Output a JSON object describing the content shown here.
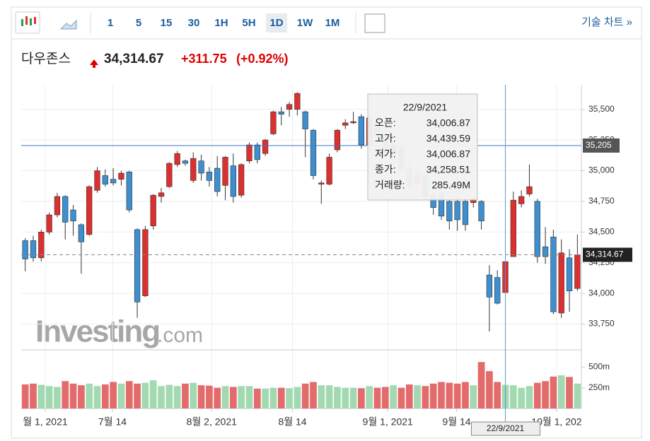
{
  "toolbar": {
    "intervals": [
      "1",
      "5",
      "15",
      "30",
      "1H",
      "5H",
      "1D",
      "1W",
      "1M"
    ],
    "selected": "1D",
    "link": "기술 차트 »"
  },
  "header": {
    "name": "다우존스",
    "price": "34,314.67",
    "change": "+311.75",
    "change_pct": "(+0.92%)"
  },
  "watermark": {
    "brand": "Investing",
    "suffix": ".com"
  },
  "chart_data": {
    "type": "candlestick",
    "up_color": "#dc2f2f",
    "down_color": "#3e8fd0",
    "volume_up_color": "#a3d9b1",
    "volume_down_color": "#e36b6b",
    "open": [
      34430,
      34430,
      34290,
      34500,
      34640,
      34790,
      34680,
      34560,
      34480,
      34840,
      34960,
      34930,
      34930,
      34990,
      34520,
      33980,
      34550,
      34790,
      34870,
      35050,
      35080,
      34920,
      35080,
      34990,
      35020,
      34880,
      35040,
      34800,
      35080,
      35210,
      35140,
      35300,
      35480,
      35500,
      35500,
      35480,
      35330,
      34890,
      34890,
      35170,
      35370,
      35390,
      35440,
      35210,
      35400,
      35290,
      35160,
      35190,
      35020,
      34900,
      34960,
      34800,
      34810,
      34750,
      34750,
      34750,
      34740,
      34750,
      34150,
      34130,
      34006.87,
      34300,
      34730,
      34810,
      34750,
      34380,
      34460,
      33840,
      34290,
      34040
    ],
    "high": [
      34450,
      34470,
      34520,
      34660,
      34820,
      34800,
      34720,
      34570,
      34880,
      35030,
      35010,
      35020,
      35000,
      35000,
      34530,
      34550,
      34810,
      34860,
      35070,
      35160,
      35090,
      35150,
      35130,
      35030,
      35120,
      35120,
      35140,
      35060,
      35230,
      35230,
      35260,
      35490,
      35520,
      35560,
      35640,
      35490,
      35340,
      34920,
      35140,
      35340,
      35420,
      35480,
      35460,
      35470,
      35420,
      35310,
      35240,
      35200,
      35060,
      34990,
      34980,
      34830,
      34830,
      34770,
      34790,
      34770,
      34790,
      34760,
      34230,
      34190,
      34439.59,
      34830,
      34840,
      35050,
      34770,
      34540,
      34520,
      34440,
      34360,
      34480
    ],
    "low": [
      34180,
      34260,
      34260,
      34480,
      34620,
      34440,
      34470,
      34160,
      34470,
      34820,
      34870,
      34880,
      34880,
      34660,
      33800,
      33970,
      34520,
      34740,
      34860,
      35030,
      35040,
      34900,
      34920,
      34870,
      34790,
      34760,
      34740,
      34780,
      35060,
      35060,
      35120,
      35290,
      35370,
      35440,
      35450,
      35110,
      34930,
      34730,
      34880,
      35150,
      35340,
      35380,
      35180,
      35190,
      35250,
      35120,
      35080,
      34980,
      34850,
      34840,
      34760,
      34640,
      34600,
      34520,
      34510,
      34510,
      34700,
      34520,
      33690,
      33910,
      34006.87,
      34300,
      34700,
      34790,
      34250,
      34240,
      33830,
      33800,
      33850,
      34020
    ],
    "close": [
      34280,
      34290,
      34500,
      34640,
      34790,
      34580,
      34590,
      34420,
      34870,
      35000,
      34890,
      34900,
      34980,
      34680,
      33930,
      34520,
      34800,
      34820,
      35060,
      35140,
      35060,
      35100,
      34980,
      34920,
      34830,
      35110,
      34790,
      35050,
      35210,
      35090,
      35250,
      35480,
      35460,
      35540,
      35630,
      35340,
      34960,
      34900,
      35110,
      35330,
      35390,
      35400,
      35210,
      35430,
      35280,
      35150,
      35200,
      35020,
      34880,
      34960,
      34790,
      34700,
      34630,
      34590,
      34600,
      34560,
      34770,
      34590,
      33970,
      33920,
      34258.51,
      34760,
      34790,
      34870,
      34300,
      34300,
      33850,
      34330,
      34020,
      34314.67
    ],
    "volume": {
      "values": [
        290,
        300,
        285,
        270,
        260,
        330,
        300,
        280,
        300,
        270,
        290,
        320,
        300,
        330,
        300,
        310,
        340,
        270,
        285,
        270,
        300,
        310,
        280,
        275,
        250,
        270,
        260,
        270,
        270,
        240,
        240,
        250,
        250,
        245,
        260,
        300,
        320,
        280,
        280,
        260,
        250,
        250,
        245,
        270,
        250,
        260,
        280,
        250,
        290,
        280,
        270,
        300,
        320,
        310,
        300,
        320,
        280,
        560,
        450,
        320,
        285.49,
        280,
        250,
        270,
        310,
        330,
        385,
        400,
        380,
        300
      ]
    },
    "xlim": [
      -0.5,
      69.5
    ],
    "xticks": [
      {
        "value": 2.5,
        "label": "월 1, 2021"
      },
      {
        "value": 10.9,
        "label": "7월 14"
      },
      {
        "value": 23.3,
        "label": "8월 2, 2021"
      },
      {
        "value": 33.4,
        "label": "8월 14"
      },
      {
        "value": 45.3,
        "label": "9월 1, 2021"
      },
      {
        "value": 53.9,
        "label": "9월 14"
      },
      {
        "value": 66.4,
        "label": "10월 1, 202"
      }
    ],
    "ylim": [
      33540,
      35700
    ],
    "yticks": [
      {
        "value": 33750,
        "label": "33,750"
      },
      {
        "value": 34000,
        "label": "34,000"
      },
      {
        "value": 34250,
        "label": "34,250"
      },
      {
        "value": 34500,
        "label": "34,500"
      },
      {
        "value": 34750,
        "label": "34,750"
      },
      {
        "value": 35000,
        "label": "35,000"
      },
      {
        "value": 35250,
        "label": "35,250"
      },
      {
        "value": 35500,
        "label": "35,500"
      }
    ],
    "y2lim": [
      0,
      690
    ],
    "y2ticks": [
      {
        "value": 250,
        "label": "250m"
      },
      {
        "value": 500,
        "label": "500m"
      }
    ],
    "grid": true,
    "crosshair": {
      "x": 60,
      "y": {
        "value": 35205,
        "label": "35,205"
      },
      "x_label": "22/9/2021"
    },
    "last": {
      "value": 34314.67,
      "label": "34,314.67"
    },
    "tooltip": {
      "date": "22/9/2021",
      "rows": [
        [
          "오픈:",
          "34,006.87"
        ],
        [
          "고가:",
          "34,439.59"
        ],
        [
          "저가:",
          "34,006.87"
        ],
        [
          "종가:",
          "34,258.51"
        ],
        [
          "거래량:",
          "285.49M"
        ]
      ]
    }
  }
}
